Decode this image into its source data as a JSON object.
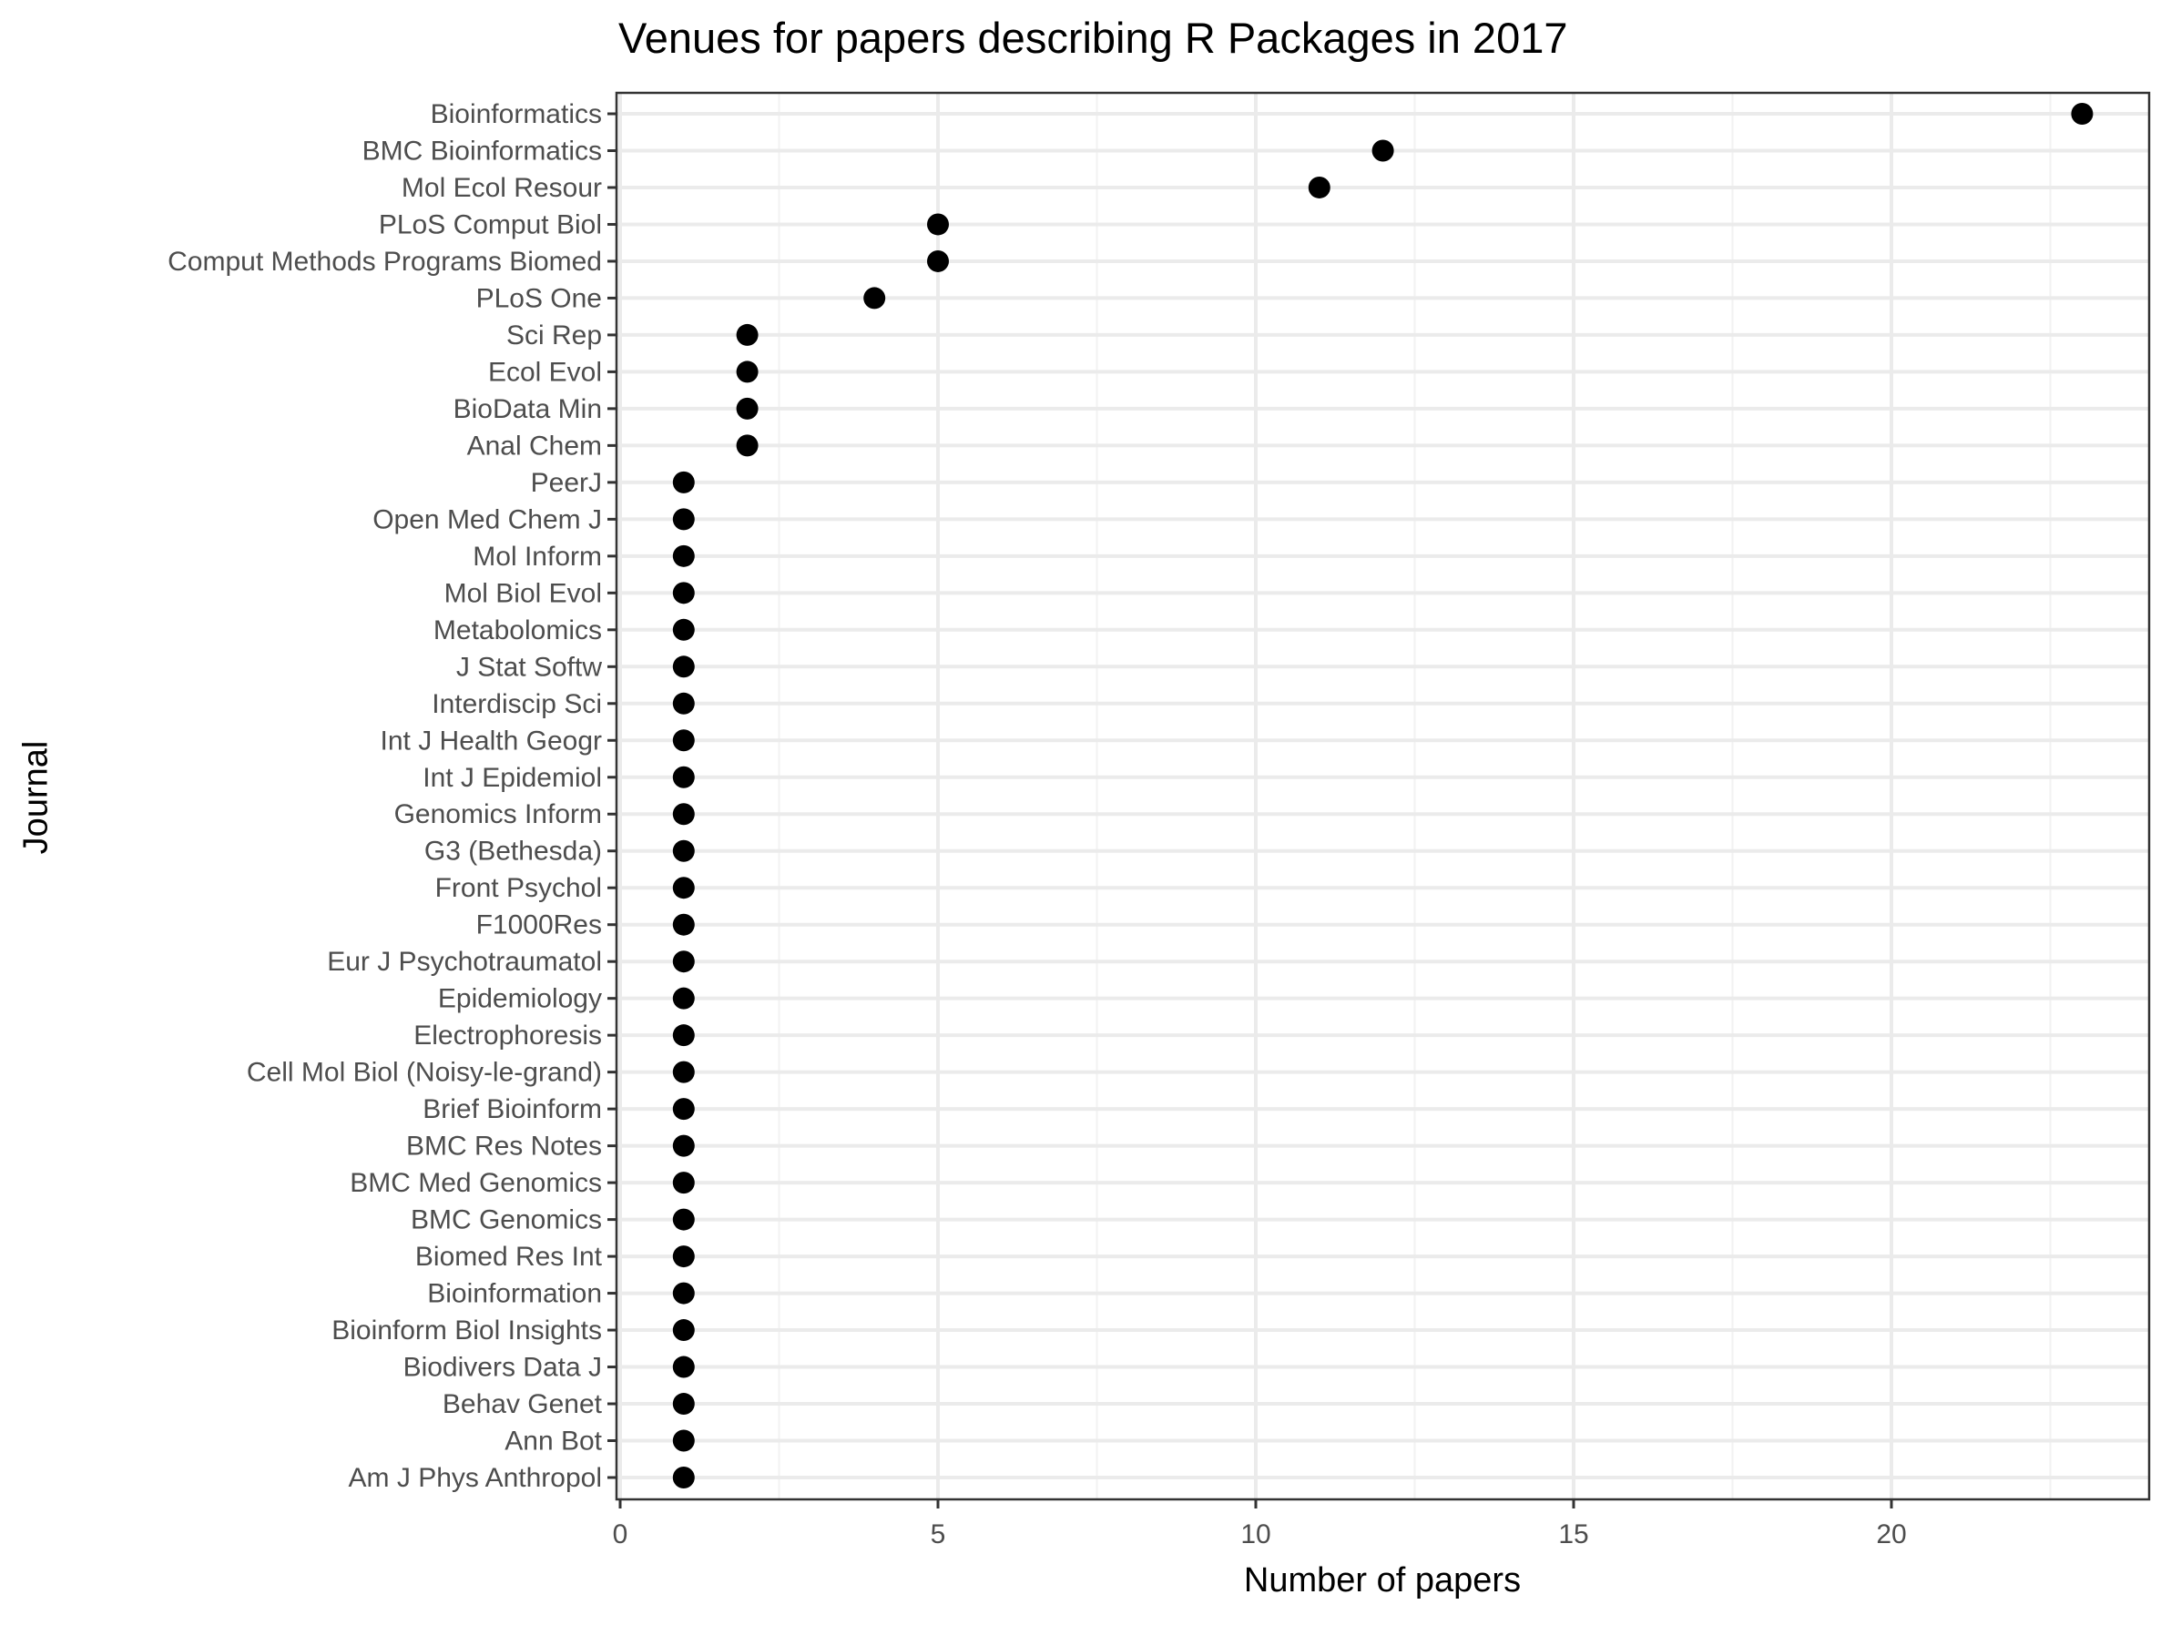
{
  "title": "Venues for papers describing R Packages in 2017",
  "x_axis": {
    "label": "Number of papers",
    "ticks": [
      0,
      5,
      10,
      15,
      20
    ]
  },
  "y_axis": {
    "label": "Journal"
  },
  "colors": {
    "point": "#000000",
    "grid_major": "#ebebeb",
    "grid_minor": "#f2f2f2",
    "panel_border": "#333333",
    "tick_text": "#4d4d4d"
  },
  "chart_data": {
    "type": "scatter",
    "subtype": "dot plot (Cleveland)",
    "title": "Venues for papers describing R Packages in 2017",
    "xlabel": "Number of papers",
    "ylabel": "Journal",
    "xlim": [
      0,
      24
    ],
    "x_ticks": [
      0,
      5,
      10,
      15,
      20
    ],
    "grid": true,
    "legend": null,
    "categories": [
      "Bioinformatics",
      "BMC Bioinformatics",
      "Mol Ecol Resour",
      "PLoS Comput Biol",
      "Comput Methods Programs Biomed",
      "PLoS One",
      "Sci Rep",
      "Ecol Evol",
      "BioData Min",
      "Anal Chem",
      "PeerJ",
      "Open Med Chem J",
      "Mol Inform",
      "Mol Biol Evol",
      "Metabolomics",
      "J Stat Softw",
      "Interdiscip Sci",
      "Int J Health Geogr",
      "Int J Epidemiol",
      "Genomics Inform",
      "G3 (Bethesda)",
      "Front Psychol",
      "F1000Res",
      "Eur J Psychotraumatol",
      "Epidemiology",
      "Electrophoresis",
      "Cell Mol Biol (Noisy-le-grand)",
      "Brief Bioinform",
      "BMC Res Notes",
      "BMC Med Genomics",
      "BMC Genomics",
      "Biomed Res Int",
      "Bioinformation",
      "Bioinform Biol Insights",
      "Biodivers Data J",
      "Behav Genet",
      "Ann Bot",
      "Am J Phys Anthropol"
    ],
    "values": [
      23,
      12,
      11,
      5,
      5,
      4,
      2,
      2,
      2,
      2,
      1,
      1,
      1,
      1,
      1,
      1,
      1,
      1,
      1,
      1,
      1,
      1,
      1,
      1,
      1,
      1,
      1,
      1,
      1,
      1,
      1,
      1,
      1,
      1,
      1,
      1,
      1,
      1
    ]
  }
}
